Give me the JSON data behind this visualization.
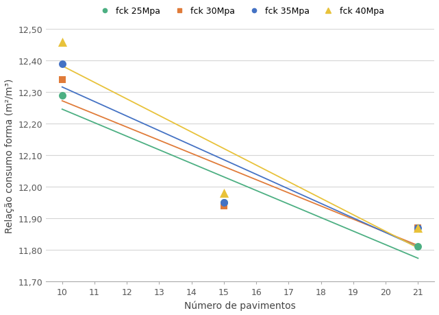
{
  "series": [
    {
      "label": "fck 25Mpa",
      "color": "#4CAF82",
      "marker": "o",
      "markersize": 5,
      "x": [
        10,
        15,
        21
      ],
      "y": [
        12.29,
        11.95,
        11.81
      ]
    },
    {
      "label": "fck 30Mpa",
      "color": "#E07B39",
      "marker": "s",
      "markersize": 5,
      "x": [
        10,
        15,
        21
      ],
      "y": [
        12.34,
        11.94,
        11.87
      ]
    },
    {
      "label": "fck 35Mpa",
      "color": "#4472C4",
      "marker": "o",
      "markersize": 5,
      "x": [
        10,
        15,
        21
      ],
      "y": [
        12.39,
        11.95,
        11.87
      ]
    },
    {
      "label": "fck 40Mpa",
      "color": "#E8C23A",
      "marker": "^",
      "markersize": 6,
      "x": [
        10,
        15,
        21
      ],
      "y": [
        12.46,
        11.98,
        11.87
      ]
    }
  ],
  "line_x_start": 10,
  "line_x_end": 21,
  "xlabel": "Número de pavimentos",
  "ylabel": "Relação consumo forma (m²/m³)",
  "ylim": [
    11.7,
    12.5
  ],
  "yticks": [
    11.7,
    11.8,
    11.9,
    12.0,
    12.1,
    12.2,
    12.3,
    12.4,
    12.5
  ],
  "xticks": [
    10,
    11,
    12,
    13,
    14,
    15,
    16,
    17,
    18,
    19,
    20,
    21
  ],
  "xlim": [
    9.5,
    21.5
  ],
  "background_color": "#ffffff",
  "grid_color": "#d5d5d5",
  "axis_fontsize": 10,
  "tick_fontsize": 9,
  "legend_fontsize": 9
}
